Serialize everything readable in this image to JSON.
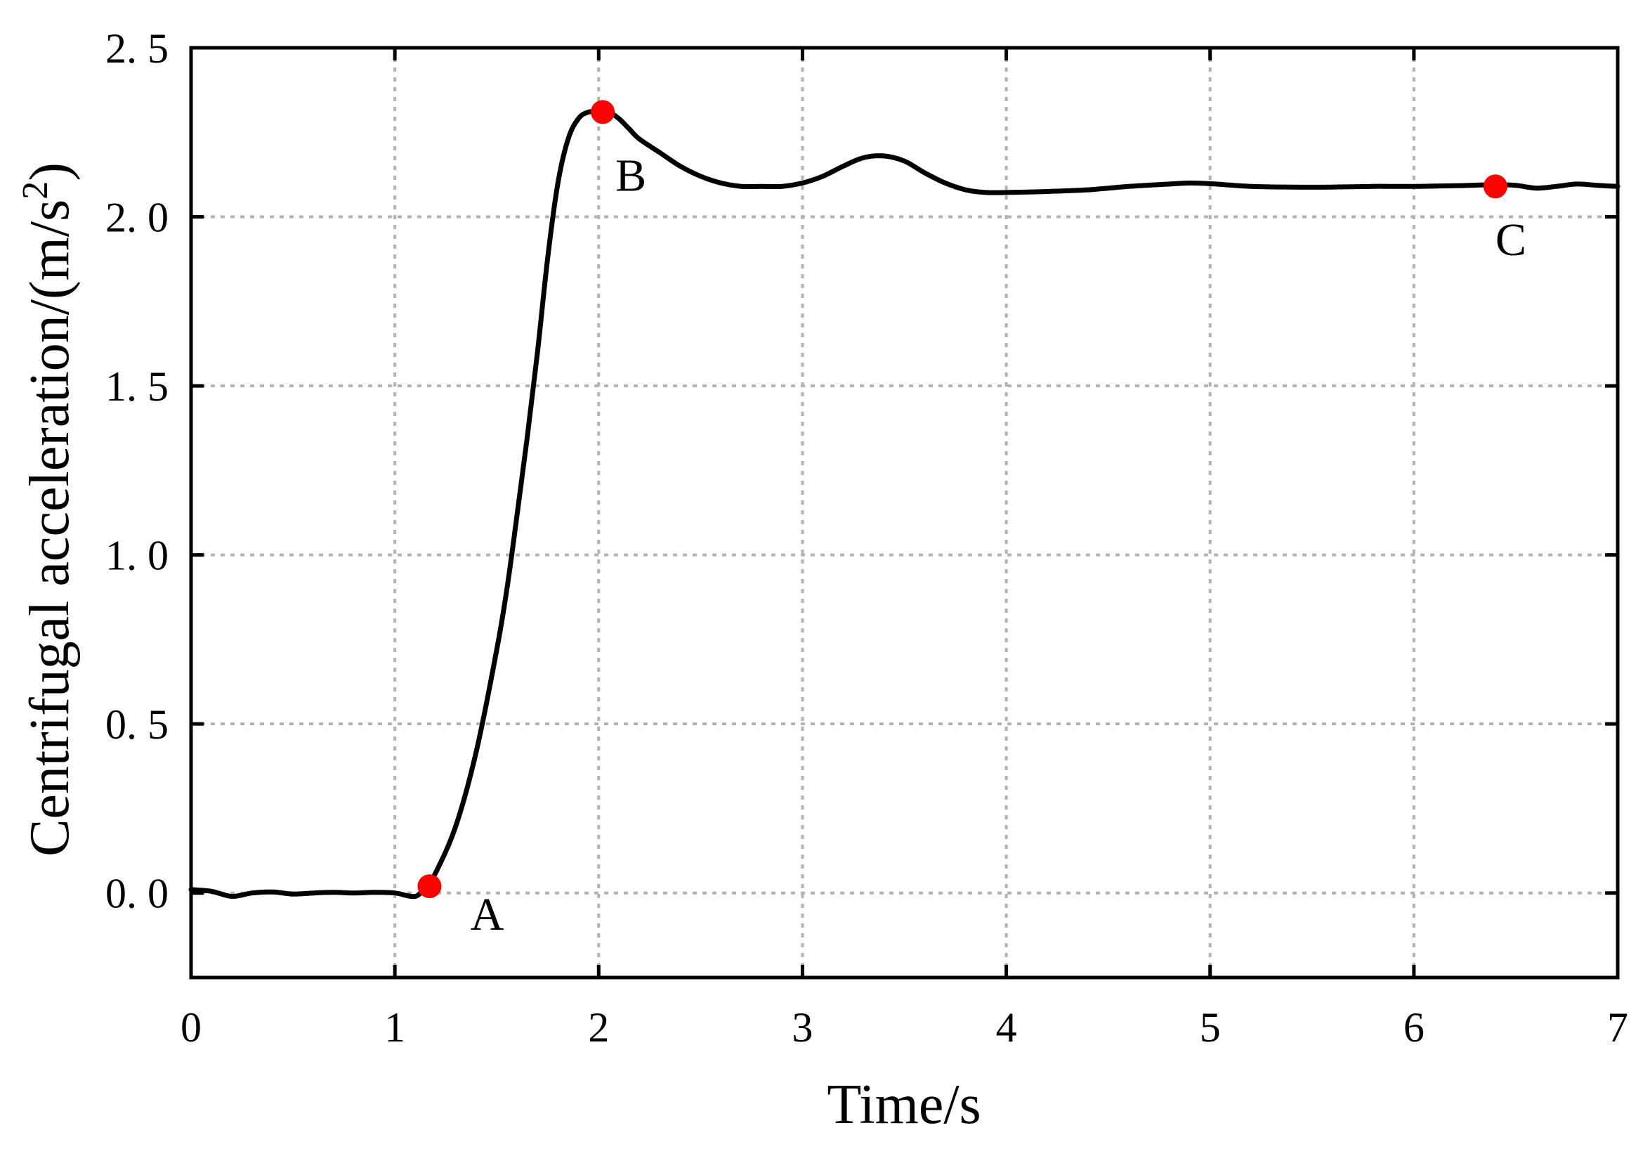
{
  "chart_data": {
    "type": "line",
    "title": "",
    "xlabel": "Time/s",
    "ylabel_main": "Centrifugal acceleration/(m/s",
    "ylabel_sup": "2",
    "ylabel_close": ")",
    "xlim": [
      0,
      7
    ],
    "ylim": [
      -0.25,
      2.5
    ],
    "x_ticks": [
      0,
      1,
      2,
      3,
      4,
      5,
      6,
      7
    ],
    "x_tick_labels": [
      "0",
      "1",
      "2",
      "3",
      "4",
      "5",
      "6",
      "7"
    ],
    "y_ticks": [
      0.0,
      0.5,
      1.0,
      1.5,
      2.0,
      2.5
    ],
    "y_tick_labels": [
      "0. 0",
      "0. 5",
      "1. 0",
      "1. 5",
      "2. 0",
      "2. 5"
    ],
    "grid": true,
    "legend": false,
    "line_color": "#000000",
    "marker_color": "#ff0000",
    "series": [
      {
        "x": [
          0.0,
          0.1,
          0.2,
          0.3,
          0.4,
          0.5,
          0.6,
          0.7,
          0.8,
          0.9,
          1.0,
          1.1,
          1.15,
          1.2,
          1.3,
          1.4,
          1.5,
          1.55,
          1.6,
          1.65,
          1.7,
          1.75,
          1.8,
          1.85,
          1.9,
          1.95,
          2.0,
          2.05,
          2.1,
          2.15,
          2.2,
          2.3,
          2.4,
          2.5,
          2.6,
          2.7,
          2.8,
          2.9,
          3.0,
          3.1,
          3.2,
          3.3,
          3.4,
          3.5,
          3.6,
          3.7,
          3.8,
          3.9,
          4.0,
          4.2,
          4.4,
          4.6,
          4.8,
          4.9,
          5.0,
          5.2,
          5.4,
          5.6,
          5.8,
          6.0,
          6.2,
          6.4,
          6.5,
          6.6,
          6.7,
          6.8,
          6.9,
          7.0
        ],
        "y": [
          0.01,
          0.005,
          -0.01,
          0.0,
          0.003,
          -0.003,
          0.0,
          0.002,
          0.0,
          0.002,
          0.0,
          -0.01,
          0.02,
          0.06,
          0.2,
          0.42,
          0.72,
          0.9,
          1.12,
          1.35,
          1.6,
          1.88,
          2.1,
          2.23,
          2.29,
          2.31,
          2.31,
          2.31,
          2.29,
          2.26,
          2.23,
          2.19,
          2.15,
          2.12,
          2.1,
          2.09,
          2.09,
          2.09,
          2.1,
          2.12,
          2.15,
          2.175,
          2.18,
          2.165,
          2.13,
          2.1,
          2.08,
          2.072,
          2.072,
          2.075,
          2.08,
          2.09,
          2.097,
          2.1,
          2.098,
          2.09,
          2.088,
          2.088,
          2.09,
          2.09,
          2.092,
          2.095,
          2.093,
          2.085,
          2.09,
          2.097,
          2.093,
          2.09
        ]
      }
    ],
    "points": [
      {
        "label": "A",
        "x": 1.17,
        "y": 0.02
      },
      {
        "label": "B",
        "x": 2.02,
        "y": 2.31
      },
      {
        "label": "C",
        "x": 6.4,
        "y": 2.09
      }
    ]
  }
}
